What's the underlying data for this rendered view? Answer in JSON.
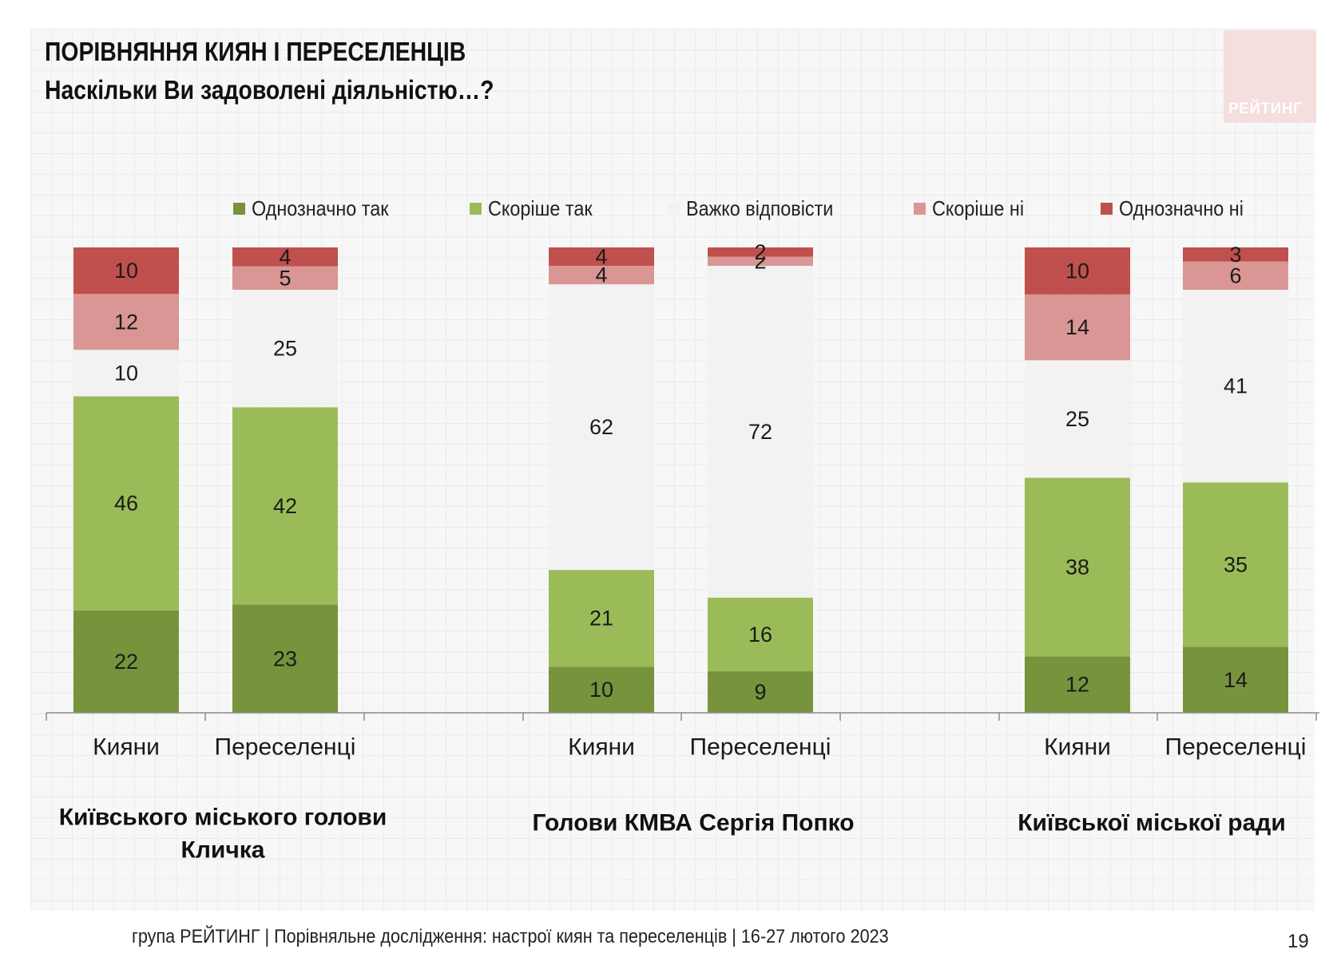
{
  "header": {
    "title": "ПОРІВНЯННЯ КИЯН І ПЕРЕСЕЛЕНЦІВ",
    "subtitle": "Наскільки Ви задоволені діяльністю…?",
    "logo_text": "РЕЙТИНГ"
  },
  "legend": [
    {
      "label": "Однозначно так",
      "color": "#77933c"
    },
    {
      "label": "Скоріше так",
      "color": "#9bbb59"
    },
    {
      "label": "Важко відповісти",
      "color": "#f2f2f2"
    },
    {
      "label": "Скоріше ні",
      "color": "#d99694"
    },
    {
      "label": "Однозначно ні",
      "color": "#c0504d"
    }
  ],
  "chart_data": {
    "type": "bar",
    "stacked": true,
    "percent_stacked": true,
    "categories": [
      "Кияни",
      "Переселенці",
      "Кияни",
      "Переселенці",
      "Кияни",
      "Переселенці"
    ],
    "groups": [
      {
        "label": "Київського міського голови Кличка",
        "label_lines": [
          "Київського міського голови",
          "Кличка"
        ],
        "categories": [
          0,
          1
        ]
      },
      {
        "label": "Голови КМВА Сергія Попко",
        "label_lines": [
          "Голови КМВА Сергія Попко"
        ],
        "categories": [
          2,
          3
        ]
      },
      {
        "label": "Київської міської ради",
        "label_lines": [
          "Київської міської ради"
        ],
        "categories": [
          4,
          5
        ]
      }
    ],
    "series": [
      {
        "name": "Однозначно так",
        "color": "#77933c",
        "values": [
          22,
          23,
          10,
          9,
          12,
          14
        ]
      },
      {
        "name": "Скоріше так",
        "color": "#9bbb59",
        "values": [
          46,
          42,
          21,
          16,
          38,
          35
        ]
      },
      {
        "name": "Важко відповісти",
        "color": "#f2f2f2",
        "values": [
          10,
          25,
          62,
          72,
          25,
          41
        ]
      },
      {
        "name": "Скоріше ні",
        "color": "#d99694",
        "values": [
          12,
          5,
          4,
          2,
          14,
          6
        ]
      },
      {
        "name": "Однозначно ні",
        "color": "#c0504d",
        "values": [
          10,
          4,
          4,
          2,
          10,
          3
        ]
      }
    ],
    "legend_position": "top",
    "data_labels": true,
    "grid": false
  },
  "footer": {
    "text": "група РЕЙТИНГ | Порівняльне дослідження: настрої киян та переселенців | 16-27 лютого 2023",
    "page_number": "19"
  }
}
